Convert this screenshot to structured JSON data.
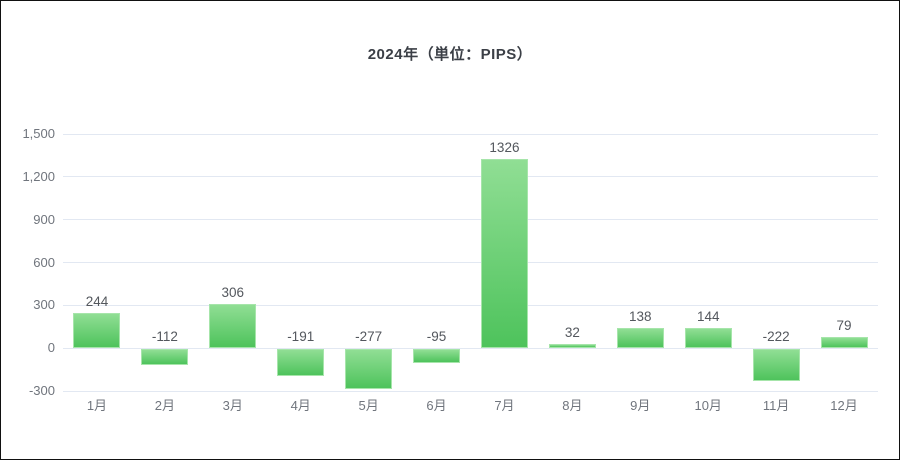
{
  "title": "2024年（単位：PIPS）",
  "chart_data": {
    "type": "bar",
    "title": "2024年（単位：PIPS）",
    "unit": "PIPS",
    "categories": [
      "1月",
      "2月",
      "3月",
      "4月",
      "5月",
      "6月",
      "7月",
      "8月",
      "9月",
      "10月",
      "11月",
      "12月"
    ],
    "values": [
      244,
      -112,
      306,
      -191,
      -277,
      -95,
      1326,
      32,
      138,
      144,
      -222,
      79
    ],
    "value_labels": [
      "244",
      "-112",
      "306",
      "-191",
      "-277",
      "-95",
      "1326",
      "32",
      "138",
      "144",
      "-222",
      "79"
    ],
    "xlabel": "",
    "ylabel": "",
    "ylim": [
      -300,
      1500
    ],
    "yticks": [
      {
        "label": "1,500",
        "value": 1500
      },
      {
        "label": "1,200",
        "value": 1200
      },
      {
        "label": "900",
        "value": 900
      },
      {
        "label": "600",
        "value": 600
      },
      {
        "label": "300",
        "value": 300
      },
      {
        "label": "0",
        "value": 0
      },
      {
        "label": "-300",
        "value": -300
      }
    ],
    "grid": true,
    "legend": false
  },
  "colors": {
    "bar_gradient_top": "#90de94",
    "bar_gradient_bottom": "#4ec35c",
    "bar_border": "#a6e5aa",
    "gridline": "#e2e8f2",
    "axis_label": "#70757d",
    "value_label": "#53575d",
    "title_text": "#3b3f46",
    "background": "#ffffff",
    "frame_border": "#111111"
  }
}
